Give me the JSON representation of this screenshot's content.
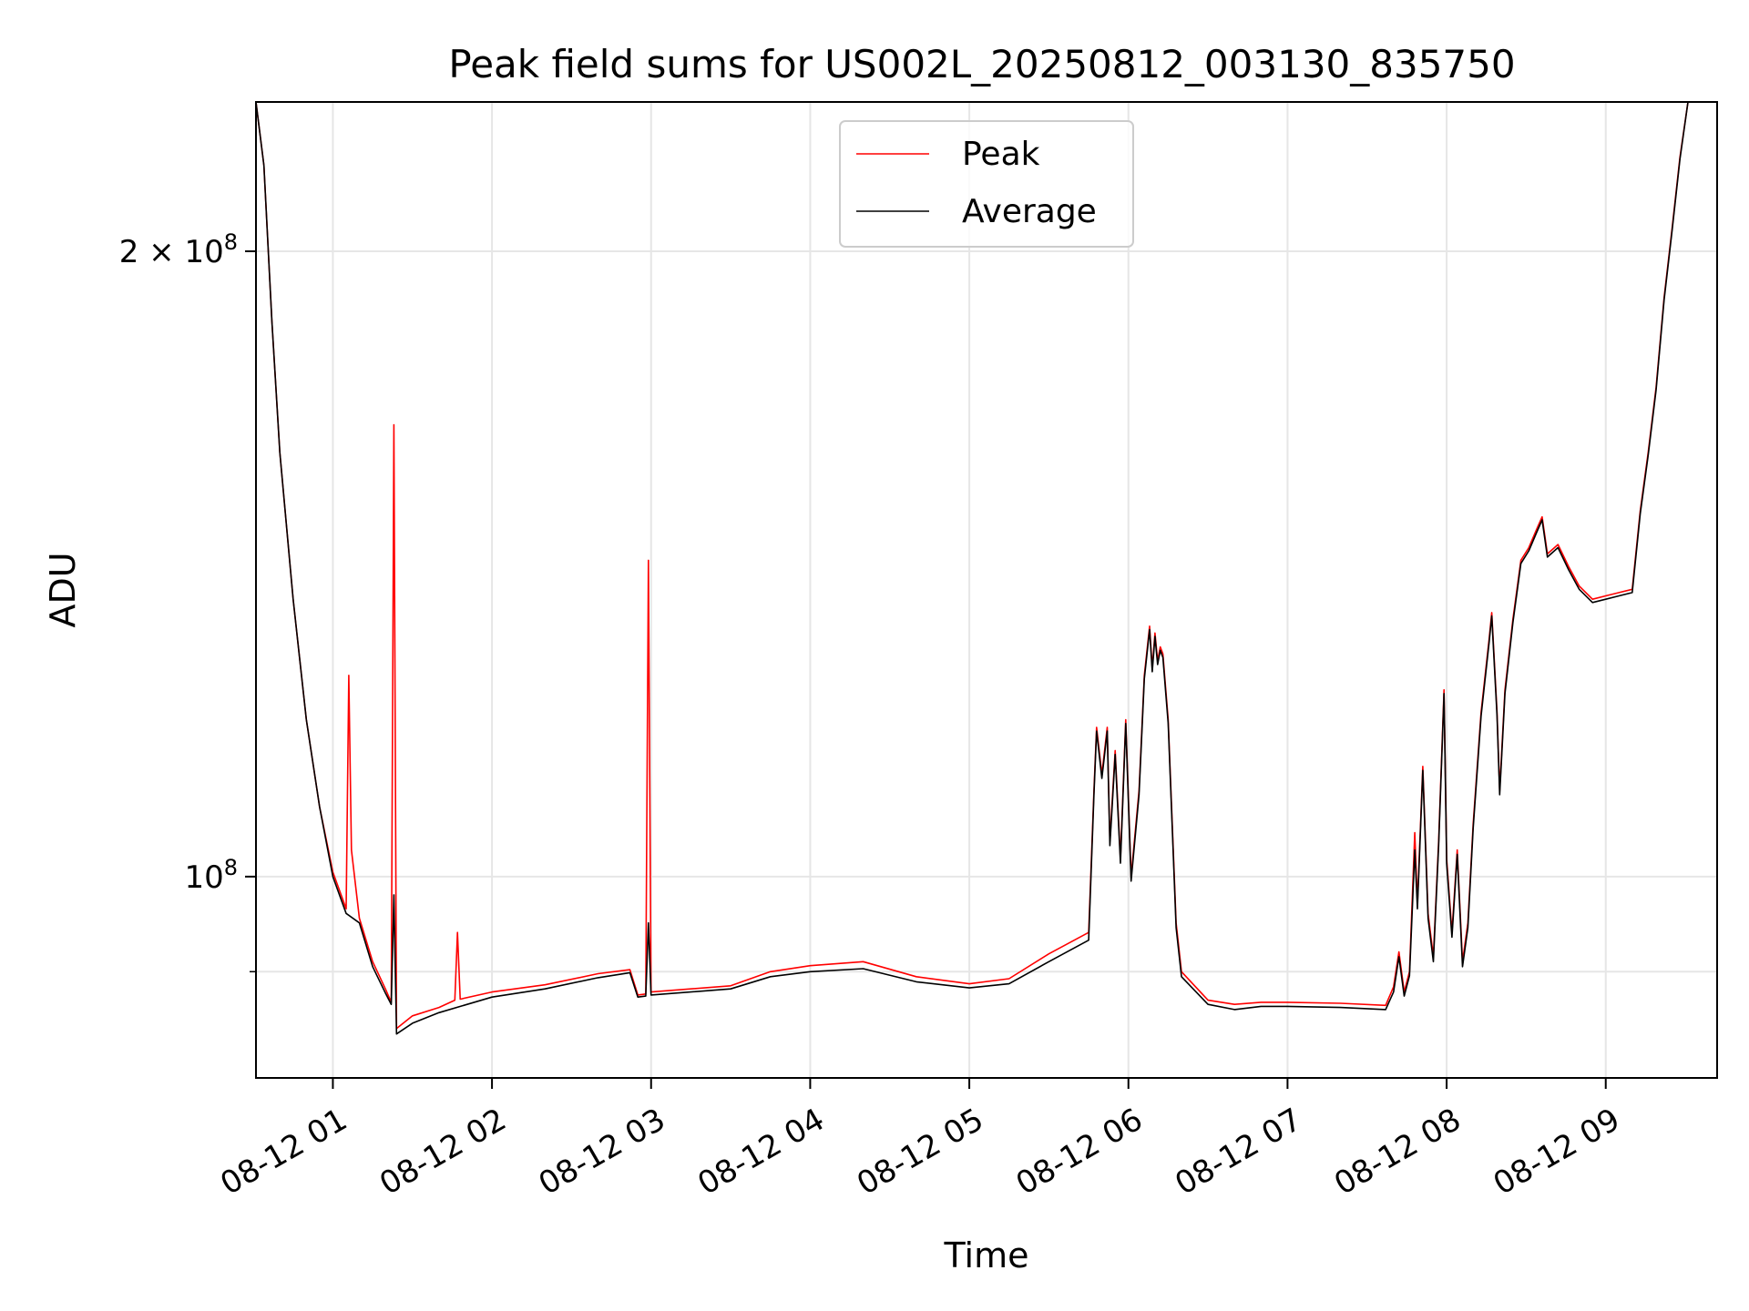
{
  "chart_data": {
    "type": "line",
    "title": "Peak field sums for US002L_20250812_003130_835750",
    "xlabel": "Time",
    "ylabel": "ADU",
    "y_scale": "log",
    "grid": true,
    "legend_placement": "top-center",
    "xlim": [
      "2025-08-12 00:31",
      "2025-08-12 09:42"
    ],
    "ylim": [
      80000000,
      236000000
    ],
    "x_ticks": [
      {
        "value": "2025-08-12 01:00",
        "label": "08-12 01"
      },
      {
        "value": "2025-08-12 02:00",
        "label": "08-12 02"
      },
      {
        "value": "2025-08-12 03:00",
        "label": "08-12 03"
      },
      {
        "value": "2025-08-12 04:00",
        "label": "08-12 04"
      },
      {
        "value": "2025-08-12 05:00",
        "label": "08-12 05"
      },
      {
        "value": "2025-08-12 06:00",
        "label": "08-12 06"
      },
      {
        "value": "2025-08-12 07:00",
        "label": "08-12 07"
      },
      {
        "value": "2025-08-12 08:00",
        "label": "08-12 08"
      },
      {
        "value": "2025-08-12 09:00",
        "label": "08-12 09"
      }
    ],
    "y_ticks_major": [
      {
        "value": 100000000,
        "base": "10",
        "exp": "8",
        "coef": ""
      },
      {
        "value": 200000000,
        "base": "10",
        "exp": "8",
        "coef": "2"
      }
    ],
    "y_ticks_minor": [
      90000000
    ],
    "series": [
      {
        "name": "Peak",
        "color": "#ff0000",
        "points": [
          [
            "2025-08-12 00:31",
            236000000
          ],
          [
            "2025-08-12 00:34",
            220000000
          ],
          [
            "2025-08-12 00:37",
            185000000
          ],
          [
            "2025-08-12 00:40",
            160000000
          ],
          [
            "2025-08-12 00:45",
            136000000
          ],
          [
            "2025-08-12 00:50",
            119000000
          ],
          [
            "2025-08-12 00:55",
            108000000
          ],
          [
            "2025-08-12 01:00",
            100500000
          ],
          [
            "2025-08-12 01:05",
            96500000
          ],
          [
            "2025-08-12 01:06",
            125000000
          ],
          [
            "2025-08-12 01:07",
            103000000
          ],
          [
            "2025-08-12 01:10",
            95500000
          ],
          [
            "2025-08-12 01:15",
            91000000
          ],
          [
            "2025-08-12 01:20",
            88200000
          ],
          [
            "2025-08-12 01:22",
            87000000
          ],
          [
            "2025-08-12 01:23",
            165000000
          ],
          [
            "2025-08-12 01:24",
            84500000
          ],
          [
            "2025-08-12 01:30",
            85700000
          ],
          [
            "2025-08-12 01:40",
            86500000
          ],
          [
            "2025-08-12 01:46",
            87200000
          ],
          [
            "2025-08-12 01:47",
            94000000
          ],
          [
            "2025-08-12 01:48",
            87300000
          ],
          [
            "2025-08-12 02:00",
            88000000
          ],
          [
            "2025-08-12 02:20",
            88700000
          ],
          [
            "2025-08-12 02:40",
            89800000
          ],
          [
            "2025-08-12 02:52",
            90200000
          ],
          [
            "2025-08-12 02:55",
            87700000
          ],
          [
            "2025-08-12 02:58",
            87800000
          ],
          [
            "2025-08-12 02:59",
            142000000
          ],
          [
            "2025-08-12 03:00",
            88000000
          ],
          [
            "2025-08-12 03:30",
            88600000
          ],
          [
            "2025-08-12 03:45",
            90000000
          ],
          [
            "2025-08-12 04:00",
            90600000
          ],
          [
            "2025-08-12 04:20",
            91000000
          ],
          [
            "2025-08-12 04:40",
            89500000
          ],
          [
            "2025-08-12 05:00",
            88800000
          ],
          [
            "2025-08-12 05:15",
            89300000
          ],
          [
            "2025-08-12 05:30",
            91800000
          ],
          [
            "2025-08-12 05:45",
            94000000
          ],
          [
            "2025-08-12 05:47",
            110000000
          ],
          [
            "2025-08-12 05:48",
            118000000
          ],
          [
            "2025-08-12 05:50",
            112000000
          ],
          [
            "2025-08-12 05:52",
            118000000
          ],
          [
            "2025-08-12 05:53",
            104000000
          ],
          [
            "2025-08-12 05:55",
            115000000
          ],
          [
            "2025-08-12 05:57",
            102000000
          ],
          [
            "2025-08-12 05:59",
            119000000
          ],
          [
            "2025-08-12 06:01",
            100000000
          ],
          [
            "2025-08-12 06:04",
            110000000
          ],
          [
            "2025-08-12 06:06",
            125000000
          ],
          [
            "2025-08-12 06:08",
            132000000
          ],
          [
            "2025-08-12 06:09",
            126000000
          ],
          [
            "2025-08-12 06:10",
            131000000
          ],
          [
            "2025-08-12 06:11",
            127000000
          ],
          [
            "2025-08-12 06:12",
            129000000
          ],
          [
            "2025-08-12 06:13",
            128000000
          ],
          [
            "2025-08-12 06:15",
            119000000
          ],
          [
            "2025-08-12 06:18",
            95000000
          ],
          [
            "2025-08-12 06:20",
            90000000
          ],
          [
            "2025-08-12 06:30",
            87200000
          ],
          [
            "2025-08-12 06:40",
            86800000
          ],
          [
            "2025-08-12 06:50",
            87000000
          ],
          [
            "2025-08-12 07:00",
            87000000
          ],
          [
            "2025-08-12 07:20",
            86900000
          ],
          [
            "2025-08-12 07:37",
            86700000
          ],
          [
            "2025-08-12 07:40",
            88500000
          ],
          [
            "2025-08-12 07:42",
            92000000
          ],
          [
            "2025-08-12 07:44",
            88000000
          ],
          [
            "2025-08-12 07:46",
            90000000
          ],
          [
            "2025-08-12 07:48",
            105000000
          ],
          [
            "2025-08-12 07:49",
            97000000
          ],
          [
            "2025-08-12 07:51",
            113000000
          ],
          [
            "2025-08-12 07:53",
            96000000
          ],
          [
            "2025-08-12 07:55",
            91500000
          ],
          [
            "2025-08-12 07:57",
            104000000
          ],
          [
            "2025-08-12 07:59",
            123000000
          ],
          [
            "2025-08-12 08:00",
            102000000
          ],
          [
            "2025-08-12 08:02",
            94000000
          ],
          [
            "2025-08-12 08:04",
            103000000
          ],
          [
            "2025-08-12 08:06",
            91000000
          ],
          [
            "2025-08-12 08:08",
            95000000
          ],
          [
            "2025-08-12 08:10",
            106000000
          ],
          [
            "2025-08-12 08:13",
            120000000
          ],
          [
            "2025-08-12 08:16",
            130000000
          ],
          [
            "2025-08-12 08:17",
            134000000
          ],
          [
            "2025-08-12 08:19",
            120000000
          ],
          [
            "2025-08-12 08:20",
            110000000
          ],
          [
            "2025-08-12 08:22",
            123000000
          ],
          [
            "2025-08-12 08:25",
            133000000
          ],
          [
            "2025-08-12 08:28",
            142000000
          ],
          [
            "2025-08-12 08:31",
            144000000
          ],
          [
            "2025-08-12 08:34",
            147000000
          ],
          [
            "2025-08-12 08:36",
            149000000
          ],
          [
            "2025-08-12 08:38",
            143000000
          ],
          [
            "2025-08-12 08:42",
            144500000
          ],
          [
            "2025-08-12 08:46",
            141000000
          ],
          [
            "2025-08-12 08:50",
            138000000
          ],
          [
            "2025-08-12 08:55",
            136000000
          ],
          [
            "2025-08-12 09:00",
            136500000
          ],
          [
            "2025-08-12 09:05",
            137000000
          ],
          [
            "2025-08-12 09:10",
            137500000
          ],
          [
            "2025-08-12 09:13",
            150000000
          ],
          [
            "2025-08-12 09:16",
            160000000
          ],
          [
            "2025-08-12 09:19",
            172000000
          ],
          [
            "2025-08-12 09:22",
            190000000
          ],
          [
            "2025-08-12 09:25",
            205000000
          ],
          [
            "2025-08-12 09:28",
            222000000
          ],
          [
            "2025-08-12 09:31",
            236000000
          ]
        ]
      },
      {
        "name": "Average",
        "color": "#000000",
        "points": [
          [
            "2025-08-12 00:31",
            236000000
          ],
          [
            "2025-08-12 00:34",
            220000000
          ],
          [
            "2025-08-12 00:37",
            185000000
          ],
          [
            "2025-08-12 00:40",
            160000000
          ],
          [
            "2025-08-12 00:45",
            136000000
          ],
          [
            "2025-08-12 00:50",
            119000000
          ],
          [
            "2025-08-12 00:55",
            108000000
          ],
          [
            "2025-08-12 01:00",
            100000000
          ],
          [
            "2025-08-12 01:05",
            96000000
          ],
          [
            "2025-08-12 01:10",
            95000000
          ],
          [
            "2025-08-12 01:15",
            90500000
          ],
          [
            "2025-08-12 01:20",
            87800000
          ],
          [
            "2025-08-12 01:22",
            86800000
          ],
          [
            "2025-08-12 01:23",
            98000000
          ],
          [
            "2025-08-12 01:24",
            84000000
          ],
          [
            "2025-08-12 01:30",
            85000000
          ],
          [
            "2025-08-12 01:40",
            86000000
          ],
          [
            "2025-08-12 02:00",
            87500000
          ],
          [
            "2025-08-12 02:20",
            88300000
          ],
          [
            "2025-08-12 02:40",
            89400000
          ],
          [
            "2025-08-12 02:52",
            89900000
          ],
          [
            "2025-08-12 02:55",
            87500000
          ],
          [
            "2025-08-12 02:58",
            87600000
          ],
          [
            "2025-08-12 02:59",
            95000000
          ],
          [
            "2025-08-12 03:00",
            87700000
          ],
          [
            "2025-08-12 03:30",
            88300000
          ],
          [
            "2025-08-12 03:45",
            89500000
          ],
          [
            "2025-08-12 04:00",
            90000000
          ],
          [
            "2025-08-12 04:20",
            90300000
          ],
          [
            "2025-08-12 04:40",
            89000000
          ],
          [
            "2025-08-12 05:00",
            88400000
          ],
          [
            "2025-08-12 05:15",
            88800000
          ],
          [
            "2025-08-12 05:30",
            91000000
          ],
          [
            "2025-08-12 05:45",
            93200000
          ],
          [
            "2025-08-12 05:47",
            109500000
          ],
          [
            "2025-08-12 05:48",
            117500000
          ],
          [
            "2025-08-12 05:50",
            111500000
          ],
          [
            "2025-08-12 05:52",
            117500000
          ],
          [
            "2025-08-12 05:53",
            103500000
          ],
          [
            "2025-08-12 05:55",
            114500000
          ],
          [
            "2025-08-12 05:57",
            101500000
          ],
          [
            "2025-08-12 05:59",
            118500000
          ],
          [
            "2025-08-12 06:01",
            99500000
          ],
          [
            "2025-08-12 06:04",
            109500000
          ],
          [
            "2025-08-12 06:06",
            124500000
          ],
          [
            "2025-08-12 06:08",
            131500000
          ],
          [
            "2025-08-12 06:09",
            125500000
          ],
          [
            "2025-08-12 06:10",
            130500000
          ],
          [
            "2025-08-12 06:11",
            126500000
          ],
          [
            "2025-08-12 06:12",
            128500000
          ],
          [
            "2025-08-12 06:13",
            127500000
          ],
          [
            "2025-08-12 06:15",
            118500000
          ],
          [
            "2025-08-12 06:18",
            94500000
          ],
          [
            "2025-08-12 06:20",
            89500000
          ],
          [
            "2025-08-12 06:30",
            86800000
          ],
          [
            "2025-08-12 06:40",
            86300000
          ],
          [
            "2025-08-12 06:50",
            86600000
          ],
          [
            "2025-08-12 07:00",
            86600000
          ],
          [
            "2025-08-12 07:20",
            86500000
          ],
          [
            "2025-08-12 07:37",
            86300000
          ],
          [
            "2025-08-12 07:40",
            88000000
          ],
          [
            "2025-08-12 07:42",
            91500000
          ],
          [
            "2025-08-12 07:44",
            87600000
          ],
          [
            "2025-08-12 07:46",
            89600000
          ],
          [
            "2025-08-12 07:48",
            103000000
          ],
          [
            "2025-08-12 07:49",
            96500000
          ],
          [
            "2025-08-12 07:51",
            112500000
          ],
          [
            "2025-08-12 07:53",
            95500000
          ],
          [
            "2025-08-12 07:55",
            91000000
          ],
          [
            "2025-08-12 07:57",
            103500000
          ],
          [
            "2025-08-12 07:59",
            122500000
          ],
          [
            "2025-08-12 08:00",
            101500000
          ],
          [
            "2025-08-12 08:02",
            93500000
          ],
          [
            "2025-08-12 08:04",
            102500000
          ],
          [
            "2025-08-12 08:06",
            90500000
          ],
          [
            "2025-08-12 08:08",
            94500000
          ],
          [
            "2025-08-12 08:10",
            105500000
          ],
          [
            "2025-08-12 08:13",
            119500000
          ],
          [
            "2025-08-12 08:16",
            129500000
          ],
          [
            "2025-08-12 08:17",
            133500000
          ],
          [
            "2025-08-12 08:19",
            119500000
          ],
          [
            "2025-08-12 08:20",
            109500000
          ],
          [
            "2025-08-12 08:22",
            122500000
          ],
          [
            "2025-08-12 08:25",
            132500000
          ],
          [
            "2025-08-12 08:28",
            141500000
          ],
          [
            "2025-08-12 08:31",
            143500000
          ],
          [
            "2025-08-12 08:34",
            146500000
          ],
          [
            "2025-08-12 08:36",
            148500000
          ],
          [
            "2025-08-12 08:38",
            142500000
          ],
          [
            "2025-08-12 08:42",
            144000000
          ],
          [
            "2025-08-12 08:46",
            140500000
          ],
          [
            "2025-08-12 08:50",
            137500000
          ],
          [
            "2025-08-12 08:55",
            135500000
          ],
          [
            "2025-08-12 09:00",
            136000000
          ],
          [
            "2025-08-12 09:05",
            136500000
          ],
          [
            "2025-08-12 09:10",
            137000000
          ],
          [
            "2025-08-12 09:13",
            149500000
          ],
          [
            "2025-08-12 09:16",
            159500000
          ],
          [
            "2025-08-12 09:19",
            171500000
          ],
          [
            "2025-08-12 09:22",
            189500000
          ],
          [
            "2025-08-12 09:25",
            204500000
          ],
          [
            "2025-08-12 09:28",
            221500000
          ],
          [
            "2025-08-12 09:31",
            236000000
          ]
        ]
      }
    ]
  }
}
